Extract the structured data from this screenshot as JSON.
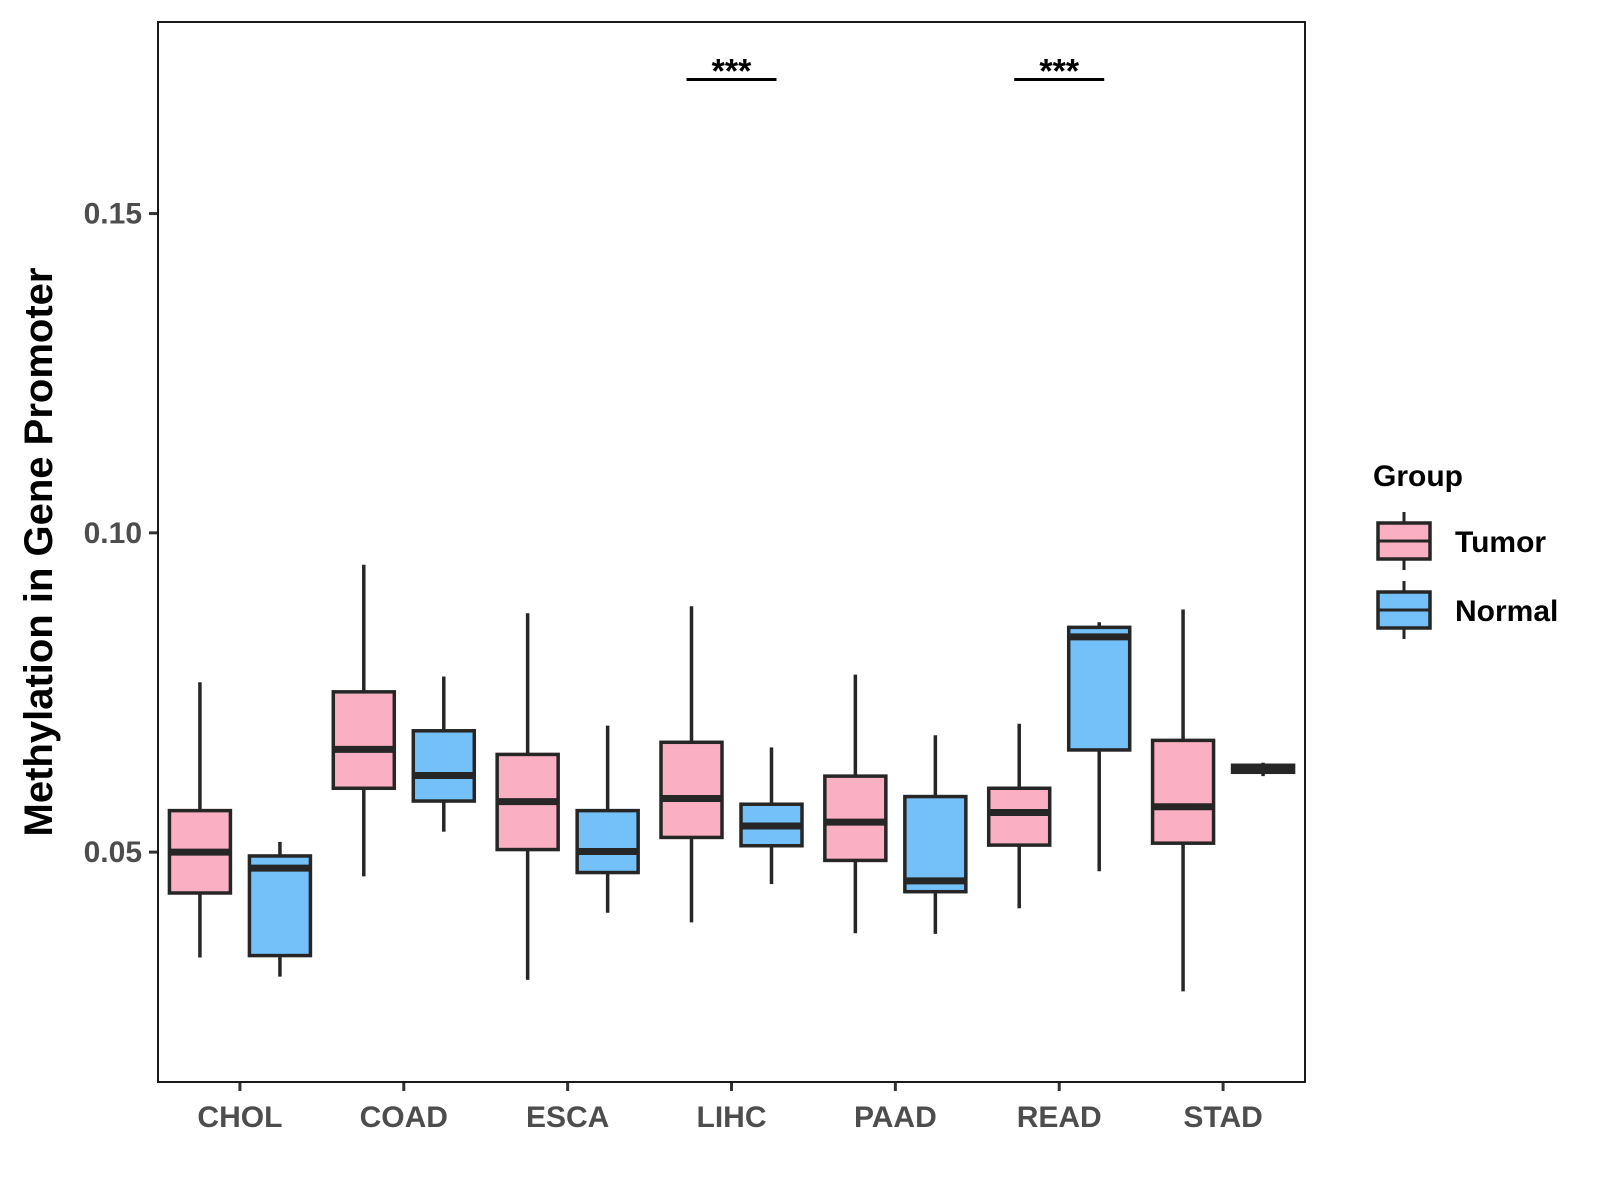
{
  "chart_data": {
    "type": "boxplot",
    "title": "",
    "xlabel": "",
    "ylabel": "Methylation in Gene Promoter",
    "ylim": [
      0.014,
      0.18
    ],
    "yticks": [
      0.05,
      0.1,
      0.15
    ],
    "ytick_labels": [
      "0.05",
      "0.10",
      "0.15"
    ],
    "categories": [
      "CHOL",
      "COAD",
      "ESCA",
      "LIHC",
      "PAAD",
      "READ",
      "STAD"
    ],
    "legend": {
      "title": "Group",
      "position": "right",
      "entries": [
        {
          "name": "Tumor",
          "color": "#FBAFC2"
        },
        {
          "name": "Normal",
          "color": "#74C0F8"
        }
      ]
    },
    "series": [
      {
        "name": "Tumor",
        "color": "#FBAFC2",
        "boxes": [
          {
            "min": 0.0335,
            "q1": 0.0436,
            "median": 0.05,
            "q3": 0.0565,
            "max": 0.0766
          },
          {
            "min": 0.0462,
            "q1": 0.06,
            "median": 0.0661,
            "q3": 0.0751,
            "max": 0.095
          },
          {
            "min": 0.03,
            "q1": 0.0504,
            "median": 0.0579,
            "q3": 0.0653,
            "max": 0.0874
          },
          {
            "min": 0.039,
            "q1": 0.0523,
            "median": 0.0584,
            "q3": 0.0672,
            "max": 0.0885
          },
          {
            "min": 0.0373,
            "q1": 0.0487,
            "median": 0.0547,
            "q3": 0.0619,
            "max": 0.0778
          },
          {
            "min": 0.0412,
            "q1": 0.0511,
            "median": 0.0562,
            "q3": 0.06,
            "max": 0.0701
          },
          {
            "min": 0.0282,
            "q1": 0.0514,
            "median": 0.0571,
            "q3": 0.0675,
            "max": 0.088
          }
        ]
      },
      {
        "name": "Normal",
        "color": "#74C0F8",
        "boxes": [
          {
            "min": 0.0305,
            "q1": 0.0338,
            "median": 0.0475,
            "q3": 0.0494,
            "max": 0.0516
          },
          {
            "min": 0.0532,
            "q1": 0.058,
            "median": 0.062,
            "q3": 0.069,
            "max": 0.0775
          },
          {
            "min": 0.0405,
            "q1": 0.0468,
            "median": 0.0501,
            "q3": 0.0565,
            "max": 0.0698
          },
          {
            "min": 0.045,
            "q1": 0.051,
            "median": 0.0541,
            "q3": 0.0575,
            "max": 0.0664
          },
          {
            "min": 0.0372,
            "q1": 0.0438,
            "median": 0.0455,
            "q3": 0.0587,
            "max": 0.0683
          },
          {
            "min": 0.047,
            "q1": 0.066,
            "median": 0.0837,
            "q3": 0.0852,
            "max": 0.086
          },
          {
            "min": 0.0619,
            "q1": 0.0625,
            "median": 0.063,
            "q3": 0.0636,
            "max": 0.064
          }
        ]
      }
    ],
    "annotations": [
      {
        "category": "LIHC",
        "label": "***",
        "y": 0.171
      },
      {
        "category": "READ",
        "label": "***",
        "y": 0.171
      }
    ]
  }
}
